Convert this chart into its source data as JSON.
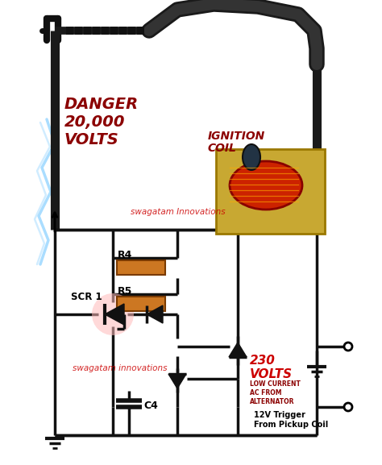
{
  "bg_color": "#ffffff",
  "danger_text": "DANGER\n20,000\nVOLTS",
  "danger_color": "#8B0000",
  "ignition_coil_text": "IGNITION\nCOIL",
  "ignition_coil_color": "#8B0000",
  "swag1_text": "swagatam Innovations",
  "swag1_color": "#cc0000",
  "swag2_text": "swagatam innovations",
  "swag2_color": "#cc0000",
  "volts230_text": "230\nVOLTS",
  "volts230_color": "#cc0000",
  "ac_text": "LOW CURRENT\nAC FROM\nALTERNATOR",
  "ac_color": "#8B0000",
  "trigger_text": "12V Trigger\nFrom Pickup Coil",
  "trigger_color": "#000000",
  "scr1_text": "SCR 1",
  "r4_text": "R4",
  "r5_text": "R5",
  "c4_text": "C4",
  "line_color": "#111111",
  "line_width": 2.5,
  "resistor_color": "#cc7722",
  "resistor_edge": "#7a3a00",
  "cable_color": "#1a1a1a",
  "lightning_color": "#aaddff",
  "coil_red": "#cc2200",
  "coil_gold": "#c8a832",
  "coil_dark": "#223344",
  "ground_lw": 3.0,
  "terminal_color": "#ffffff"
}
